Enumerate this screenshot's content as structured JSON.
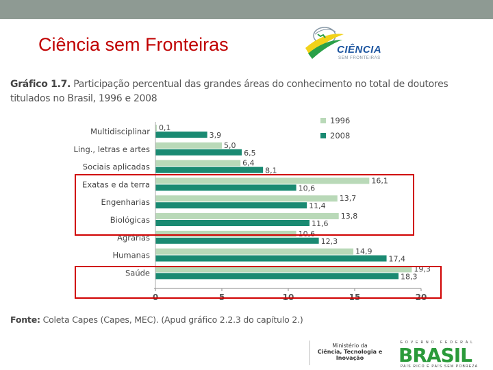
{
  "slide": {
    "title": "Ciência sem Fronteiras",
    "logo_word": "CIÊNCIA",
    "logo_sub": "SEM FRONTEIRAS"
  },
  "figure": {
    "label": "Gráfico 1.7.",
    "caption": "Participação percentual das grandes áreas do conhecimento no total de doutores titulados no Brasil, 1996 e 2008",
    "source_label": "Fonte:",
    "source_text": "Coleta Capes (Capes, MEC). (Apud gráfico 2.2.3 do capítulo 2.)"
  },
  "footer": {
    "ministerio_line1": "Ministério da",
    "ministerio_line2": "Ciência, Tecnologia e",
    "ministerio_line3": "Inovação",
    "gov_label": "GOVERNO FEDERAL",
    "brasil_word": "BRASIL",
    "brasil_tag": "PAÍS RICO É PAÍS SEM POBREZA"
  },
  "chart_data": {
    "type": "bar",
    "orientation": "horizontal",
    "categories": [
      "Multidisciplinar",
      "Ling., letras e artes",
      "Sociais aplicadas",
      "Exatas e da terra",
      "Engenharias",
      "Biológicas",
      "Agrárias",
      "Humanas",
      "Saúde"
    ],
    "series": [
      {
        "name": "1996",
        "color": "#b9d9b8",
        "values": [
          0.1,
          5.0,
          6.4,
          16.1,
          13.7,
          13.8,
          10.6,
          14.9,
          19.3
        ]
      },
      {
        "name": "2008",
        "color": "#1a8a72",
        "values": [
          3.9,
          6.5,
          8.1,
          10.6,
          11.4,
          11.6,
          12.3,
          17.4,
          18.3
        ]
      }
    ],
    "value_labels": {
      "1996": [
        "0,1",
        "5,0",
        "6,4",
        "16,1",
        "13,7",
        "13,8",
        "10,6",
        "14,9",
        "19,3"
      ],
      "2008": [
        "3,9",
        "6,5",
        "8,1",
        "10,6",
        "11,4",
        "11,6",
        "12,3",
        "17,4",
        "18,3"
      ]
    },
    "x_ticks": [
      0,
      5,
      10,
      15,
      20
    ],
    "xlim": [
      0,
      20
    ],
    "legend_position": "top-right",
    "highlight_boxes": [
      {
        "categories": [
          "Exatas e da terra",
          "Engenharias",
          "Biológicas"
        ],
        "color": "#d00000"
      },
      {
        "categories": [
          "Saúde"
        ],
        "color": "#d00000"
      }
    ]
  }
}
